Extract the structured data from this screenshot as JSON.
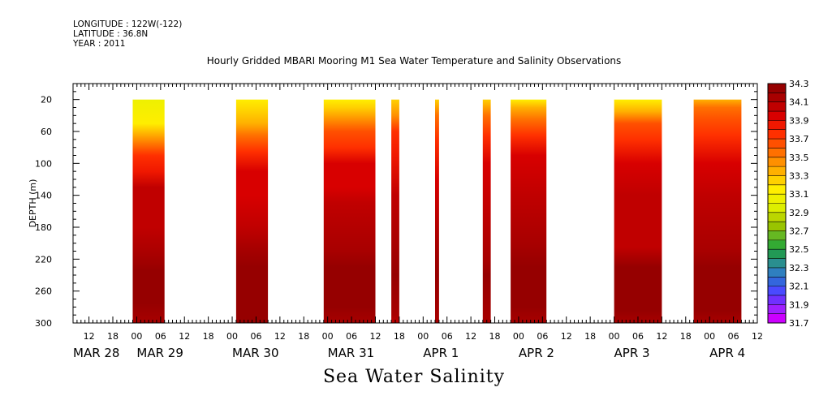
{
  "header": {
    "longitude": "LONGITUDE : 122W(-122)",
    "latitude": "LATITUDE : 36.8N",
    "year": "YEAR : 2011"
  },
  "title": "Hourly Gridded MBARI Mooring M1 Sea Water Temperature and Salinity Observations",
  "bottom_label": "Sea Water Salinity",
  "chart_data": {
    "type": "heatmap",
    "title": "Hourly Gridded MBARI Mooring M1 Sea Water Temperature and Salinity Observations",
    "variable": "Sea Water Salinity",
    "xlabel": "",
    "ylabel": "DEPTH (m)",
    "x_start": "2011-03-28 08:00",
    "x_end": "2011-04-04 12:00",
    "ylim": [
      300,
      0
    ],
    "y_ticks": [
      20,
      60,
      100,
      140,
      180,
      220,
      260,
      300
    ],
    "hour_ticks": [
      "12",
      "18",
      "00",
      "06",
      "12",
      "18",
      "00",
      "06",
      "12",
      "18",
      "00",
      "06",
      "12",
      "18",
      "00",
      "06",
      "12",
      "18",
      "00",
      "06",
      "12",
      "18",
      "00",
      "06",
      "12",
      "18",
      "00",
      "06",
      "12",
      "18",
      "00",
      "06"
    ],
    "day_labels": [
      "MAR 28",
      "MAR 29",
      "MAR 30",
      "MAR 31",
      "APR  1",
      "APR  2",
      "APR  3",
      "APR  4"
    ],
    "colorbar": {
      "values": [
        31.7,
        31.8,
        31.9,
        32.0,
        32.1,
        32.2,
        32.3,
        32.4,
        32.5,
        32.6,
        32.7,
        32.8,
        32.9,
        33.0,
        33.1,
        33.2,
        33.3,
        33.4,
        33.5,
        33.6,
        33.7,
        33.8,
        33.9,
        34.0,
        34.1,
        34.2,
        34.3
      ],
      "labels": [
        "34.3",
        "34.1",
        "33.9",
        "33.7",
        "33.5",
        "33.3",
        "33.1",
        "32.9",
        "32.7",
        "32.5",
        "32.3",
        "32.1",
        "31.9",
        "31.7"
      ],
      "colors": [
        "#cc00ff",
        "#a020ff",
        "#7030ff",
        "#4a4aff",
        "#3366dd",
        "#2f7fbf",
        "#2a8f8f",
        "#229955",
        "#33aa33",
        "#66b822",
        "#99c400",
        "#bbd600",
        "#ddee00",
        "#eef000",
        "#ffee00",
        "#ffd000",
        "#ffb000",
        "#ff9000",
        "#ff7000",
        "#ff5000",
        "#ff3000",
        "#f01800",
        "#d80000",
        "#c00000",
        "#a80000",
        "#960000"
      ]
    },
    "segments": [
      {
        "start": "2011-03-28 23:00",
        "end": "2011-03-29 07:00",
        "profile": [
          [
            20,
            33.05
          ],
          [
            50,
            33.15
          ],
          [
            70,
            33.45
          ],
          [
            90,
            33.7
          ],
          [
            110,
            33.88
          ],
          [
            130,
            34.0
          ],
          [
            180,
            34.02
          ],
          [
            215,
            34.12
          ],
          [
            235,
            34.22
          ],
          [
            275,
            34.2
          ],
          [
            300,
            34.15
          ]
        ]
      },
      {
        "start": "2011-03-30 01:00",
        "end": "2011-03-30 09:00",
        "profile": [
          [
            20,
            33.15
          ],
          [
            35,
            33.2
          ],
          [
            50,
            33.35
          ],
          [
            65,
            33.55
          ],
          [
            85,
            33.75
          ],
          [
            110,
            33.9
          ],
          [
            140,
            33.98
          ],
          [
            180,
            34.02
          ],
          [
            205,
            34.12
          ],
          [
            230,
            34.22
          ],
          [
            275,
            34.25
          ],
          [
            300,
            34.2
          ]
        ]
      },
      {
        "start": "2011-03-30 23:00",
        "end": "2011-03-31 12:00",
        "profile": [
          [
            20,
            33.1
          ],
          [
            30,
            33.3
          ],
          [
            45,
            33.45
          ],
          [
            60,
            33.65
          ],
          [
            80,
            33.8
          ],
          [
            100,
            33.9
          ],
          [
            130,
            33.97
          ],
          [
            150,
            34.05
          ],
          [
            210,
            34.12
          ],
          [
            230,
            34.22
          ],
          [
            280,
            34.25
          ],
          [
            300,
            34.12
          ]
        ]
      },
      {
        "start": "2011-03-31 16:00",
        "end": "2011-03-31 18:00",
        "profile": [
          [
            20,
            33.2
          ],
          [
            40,
            33.45
          ],
          [
            60,
            33.7
          ],
          [
            90,
            33.88
          ],
          [
            140,
            34.0
          ],
          [
            200,
            34.1
          ],
          [
            240,
            34.2
          ],
          [
            290,
            34.12
          ],
          [
            300,
            34.05
          ]
        ]
      },
      {
        "start": "2011-04-01 03:00",
        "end": "2011-04-01 04:00",
        "profile": [
          [
            20,
            33.2
          ],
          [
            40,
            33.5
          ],
          [
            70,
            33.8
          ],
          [
            120,
            33.95
          ],
          [
            200,
            34.1
          ],
          [
            240,
            34.2
          ],
          [
            300,
            34.12
          ]
        ]
      },
      {
        "start": "2011-04-01 15:00",
        "end": "2011-04-01 17:00",
        "profile": [
          [
            20,
            33.2
          ],
          [
            40,
            33.5
          ],
          [
            65,
            33.78
          ],
          [
            100,
            33.92
          ],
          [
            160,
            34.02
          ],
          [
            220,
            34.1
          ],
          [
            240,
            34.2
          ],
          [
            300,
            34.12
          ]
        ]
      },
      {
        "start": "2011-04-01 22:00",
        "end": "2011-04-02 07:00",
        "profile": [
          [
            20,
            33.1
          ],
          [
            30,
            33.35
          ],
          [
            45,
            33.55
          ],
          [
            65,
            33.75
          ],
          [
            90,
            33.9
          ],
          [
            140,
            34.0
          ],
          [
            200,
            34.1
          ],
          [
            230,
            34.2
          ],
          [
            280,
            34.22
          ],
          [
            300,
            34.12
          ]
        ]
      },
      {
        "start": "2011-04-03 00:00",
        "end": "2011-04-03 12:00",
        "profile": [
          [
            20,
            33.15
          ],
          [
            35,
            33.35
          ],
          [
            50,
            33.6
          ],
          [
            70,
            33.8
          ],
          [
            100,
            33.92
          ],
          [
            140,
            34.0
          ],
          [
            205,
            34.08
          ],
          [
            230,
            34.2
          ],
          [
            285,
            34.2
          ],
          [
            300,
            34.12
          ]
        ]
      },
      {
        "start": "2011-04-03 20:00",
        "end": "2011-04-04 08:00",
        "profile": [
          [
            20,
            33.35
          ],
          [
            30,
            33.5
          ],
          [
            45,
            33.65
          ],
          [
            65,
            33.8
          ],
          [
            100,
            33.92
          ],
          [
            140,
            34.02
          ],
          [
            210,
            34.1
          ],
          [
            230,
            34.2
          ],
          [
            285,
            34.22
          ],
          [
            300,
            34.12
          ]
        ]
      }
    ]
  }
}
